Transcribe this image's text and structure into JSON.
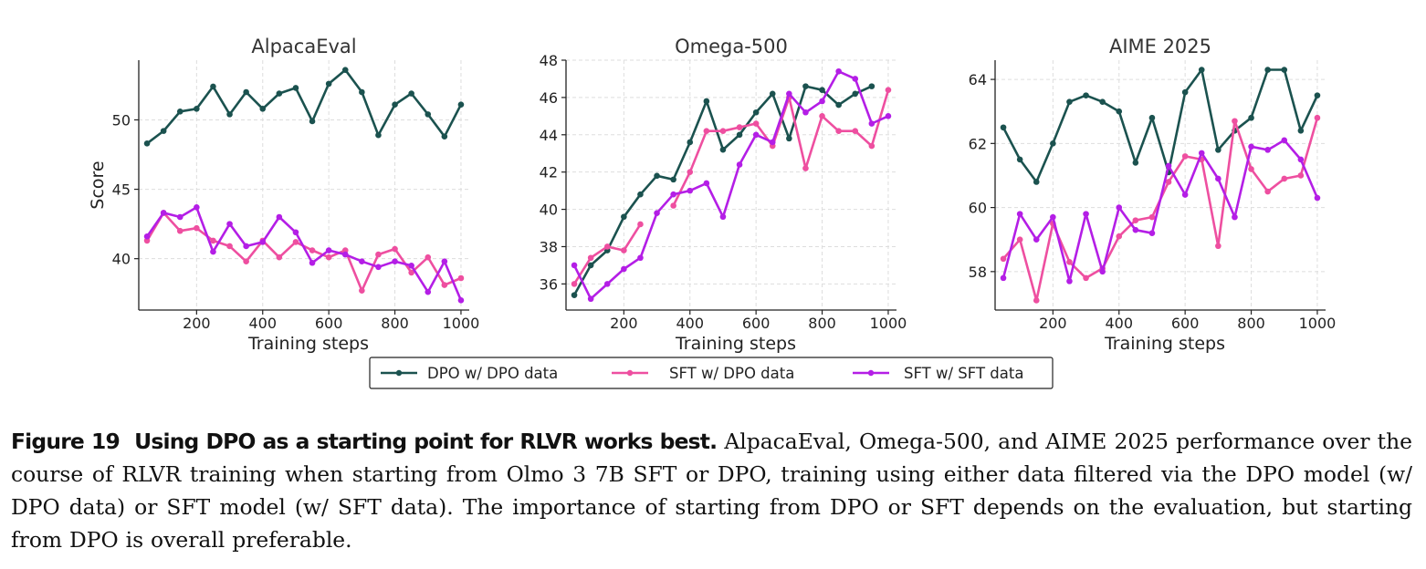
{
  "colors": {
    "dpo_dpo": "#1b524f",
    "sft_dpo": "#ee4fa0",
    "sft_sft": "#b41ee6",
    "grid": "#dddddd",
    "axis": "#222222"
  },
  "legend": {
    "items": [
      "DPO w/ DPO data",
      "SFT w/ DPO data",
      "SFT w/ SFT data"
    ]
  },
  "caption": {
    "label": "Figure 19",
    "bold": "Using DPO as a starting point for RLVR works best.",
    "text": "AlpacaEval, Omega-500, and AIME 2025 performance over the course of RLVR training when starting from Olmo 3 7B SFT or DPO, training using either data filtered via the DPO model (w/ DPO data) or SFT model (w/ SFT data). The importance of starting from DPO or SFT depends on the evaluation, but starting from DPO is overall preferable."
  },
  "chart_data": [
    {
      "type": "line",
      "title": "AlpacaEval",
      "xlabel": "Training steps",
      "ylabel": "Score",
      "xlim": [
        25,
        1025
      ],
      "ylim": [
        36.3,
        54.3
      ],
      "xticks": [
        200,
        400,
        600,
        800,
        1000
      ],
      "yticks": [
        40,
        45,
        50
      ],
      "x": [
        50,
        100,
        150,
        200,
        250,
        300,
        350,
        400,
        450,
        500,
        550,
        600,
        650,
        700,
        750,
        800,
        850,
        900,
        950,
        1000
      ],
      "series": [
        {
          "name": "DPO w/ DPO data",
          "values": [
            48.3,
            49.2,
            50.6,
            50.8,
            52.4,
            50.4,
            52.0,
            50.8,
            51.9,
            52.3,
            49.9,
            52.6,
            53.6,
            52.0,
            48.9,
            51.1,
            51.9,
            50.4,
            48.8,
            51.1
          ]
        },
        {
          "name": "SFT w/ DPO data",
          "values": [
            41.3,
            43.3,
            42.0,
            42.2,
            41.3,
            40.9,
            39.8,
            41.3,
            40.1,
            41.2,
            40.6,
            40.1,
            40.6,
            37.7,
            40.3,
            40.7,
            39.0,
            40.1,
            38.1,
            38.6
          ]
        },
        {
          "name": "SFT w/ SFT data",
          "values": [
            41.6,
            43.3,
            43.0,
            43.7,
            40.5,
            42.5,
            40.9,
            41.2,
            43.0,
            41.9,
            39.7,
            40.6,
            40.3,
            39.8,
            39.4,
            39.8,
            39.5,
            37.6,
            39.8,
            37.0
          ]
        }
      ]
    },
    {
      "type": "line",
      "title": "Omega-500",
      "xlabel": "Training steps",
      "ylabel": "",
      "xlim": [
        25,
        1025
      ],
      "ylim": [
        34.6,
        48.0
      ],
      "xticks": [
        200,
        400,
        600,
        800,
        1000
      ],
      "yticks": [
        36,
        38,
        40,
        42,
        44,
        46,
        48
      ],
      "x": [
        50,
        100,
        150,
        200,
        250,
        300,
        350,
        400,
        450,
        500,
        550,
        600,
        650,
        700,
        750,
        800,
        850,
        900,
        950,
        1000
      ],
      "series": [
        {
          "name": "DPO w/ DPO data",
          "values": [
            35.4,
            37.0,
            37.8,
            39.6,
            40.8,
            41.8,
            41.6,
            43.6,
            45.8,
            43.2,
            44.0,
            45.2,
            46.2,
            43.8,
            46.6,
            46.4,
            45.6,
            46.2,
            46.6,
            null
          ]
        },
        {
          "name": "SFT w/ DPO data",
          "values": [
            36.0,
            37.4,
            38.0,
            37.8,
            39.2,
            null,
            40.2,
            42.0,
            44.2,
            44.2,
            44.4,
            44.6,
            43.4,
            46.0,
            42.2,
            45.0,
            44.2,
            44.2,
            43.4,
            46.4
          ]
        },
        {
          "name": "SFT w/ SFT data",
          "values": [
            37.0,
            35.2,
            36.0,
            36.8,
            37.4,
            39.8,
            40.8,
            41.0,
            41.4,
            39.6,
            42.4,
            44.0,
            43.6,
            46.2,
            45.2,
            45.8,
            47.4,
            47.0,
            44.6,
            45.0
          ]
        }
      ]
    },
    {
      "type": "line",
      "title": "AIME 2025",
      "xlabel": "Training steps",
      "ylabel": "",
      "xlim": [
        25,
        1025
      ],
      "ylim": [
        56.8,
        64.6
      ],
      "xticks": [
        200,
        400,
        600,
        800,
        1000
      ],
      "yticks": [
        58,
        60,
        62,
        64
      ],
      "x": [
        50,
        100,
        150,
        200,
        250,
        300,
        350,
        400,
        450,
        500,
        550,
        600,
        650,
        700,
        750,
        800,
        850,
        900,
        950,
        1000
      ],
      "series": [
        {
          "name": "DPO w/ DPO data",
          "values": [
            62.5,
            61.5,
            60.8,
            62.0,
            63.3,
            63.5,
            63.3,
            63.0,
            61.4,
            62.8,
            61.1,
            63.6,
            64.3,
            61.8,
            62.4,
            62.8,
            64.3,
            64.3,
            62.4,
            63.5
          ]
        },
        {
          "name": "SFT w/ DPO data",
          "values": [
            58.4,
            59.0,
            57.1,
            59.5,
            58.3,
            57.8,
            58.1,
            59.1,
            59.6,
            59.7,
            60.8,
            61.6,
            61.5,
            58.8,
            62.7,
            61.2,
            60.5,
            60.9,
            61.0,
            62.8
          ]
        },
        {
          "name": "SFT w/ SFT data",
          "values": [
            57.8,
            59.8,
            59.0,
            59.7,
            57.7,
            59.8,
            58.0,
            60.0,
            59.3,
            59.2,
            61.3,
            60.4,
            61.7,
            60.9,
            59.7,
            61.9,
            61.8,
            62.1,
            61.5,
            60.3
          ]
        }
      ]
    }
  ]
}
